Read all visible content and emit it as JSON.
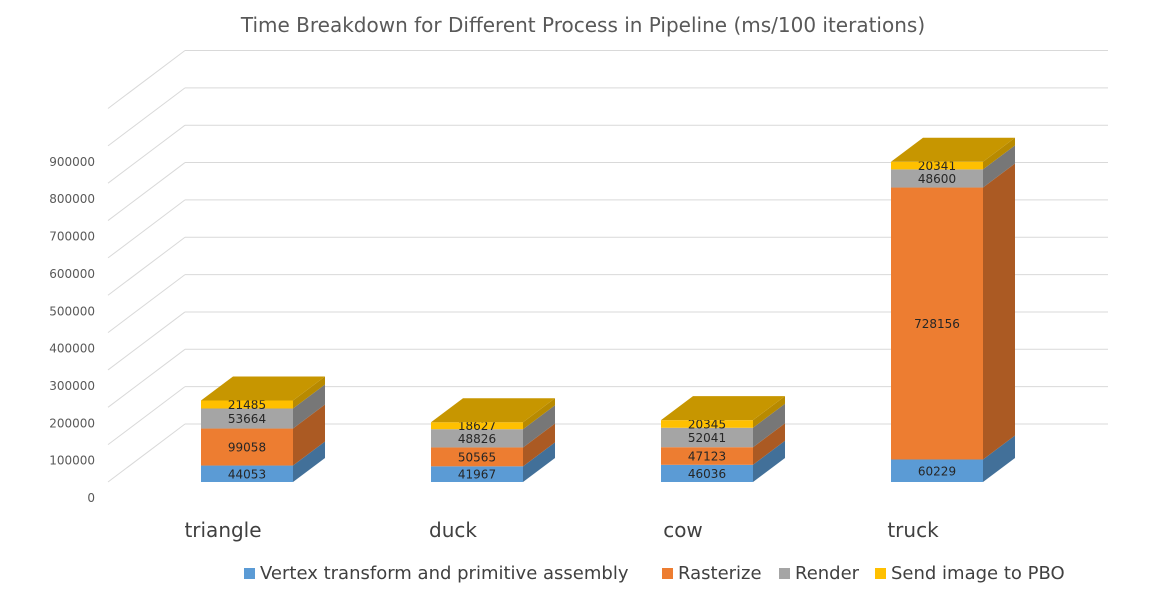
{
  "chart_data": {
    "type": "bar",
    "stacked": true,
    "three_d": true,
    "title": "Time Breakdown for Different Process in Pipeline (ms/100 iterations)",
    "categories": [
      "triangle",
      "duck",
      "cow",
      "truck"
    ],
    "series": [
      {
        "name": "Vertex transform and primitive assembly",
        "color": "#5B9BD5",
        "values": [
          44053,
          41967,
          46036,
          60229
        ]
      },
      {
        "name": "Rasterize",
        "color": "#ED7D31",
        "values": [
          99058,
          50565,
          47123,
          728156
        ]
      },
      {
        "name": "Render",
        "color": "#A5A5A5",
        "values": [
          53664,
          48826,
          52041,
          48600
        ]
      },
      {
        "name": "Send image to PBO",
        "color": "#FFC000",
        "values": [
          21485,
          18627,
          20345,
          20341
        ]
      }
    ],
    "y_ticks": [
      "0",
      "100000",
      "200000",
      "300000",
      "400000",
      "500000",
      "600000",
      "700000",
      "800000",
      "900000"
    ],
    "ylim": [
      0,
      1000000
    ],
    "grid": true,
    "legend_position": "bottom"
  }
}
